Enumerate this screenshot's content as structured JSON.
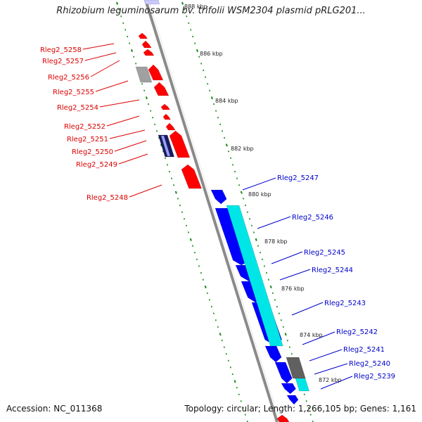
{
  "title": "Rhizobium leguminosarum bv. trifolii WSM2304 plasmid pRLG201...",
  "accession": "Accession: NC_011368",
  "summary": "Topology: circular; Length: 1,266,105 bp; Genes: 1,161",
  "colors": {
    "reverse_gene": "#ff0000",
    "forward_gene": "#0000ff",
    "cyan_feature": "#00e5e5",
    "grey_feature": "#a0a0a0",
    "backbone": "#8a8a8a",
    "tick": "#1a8a1a",
    "reverse_label": "#dd0000",
    "forward_label": "#0000cc"
  },
  "scale": {
    "ticks": [
      "888 kbp",
      "886 kbp",
      "884 kbp",
      "882 kbp",
      "880 kbp",
      "878 kbp",
      "876 kbp",
      "874 kbp",
      "872 kbp"
    ]
  },
  "reverse_labels": [
    "Rleg2_5258",
    "Rleg2_5257",
    "Rleg2_5256",
    "Rleg2_5255",
    "Rleg2_5254",
    "Rleg2_5252",
    "Rleg2_5251",
    "Rleg2_5250",
    "Rleg2_5249",
    "Rleg2_5248"
  ],
  "forward_labels": [
    "Rleg2_5247",
    "Rleg2_5246",
    "Rleg2_5245",
    "Rleg2_5244",
    "Rleg2_5243",
    "Rleg2_5242",
    "Rleg2_5241",
    "Rleg2_5240",
    "Rleg2_5239"
  ]
}
